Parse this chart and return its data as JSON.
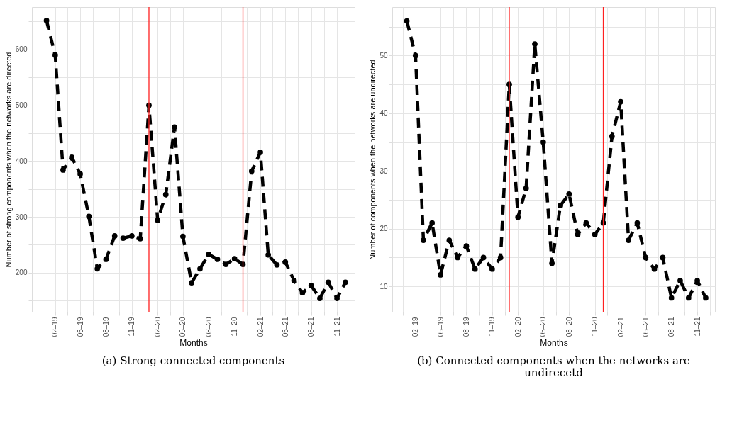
{
  "chart_data": [
    {
      "type": "line",
      "xlabel": "Months",
      "ylabel": "Number of strong components when the networks are directed",
      "annotations": [
        "(a) Strong connected components"
      ],
      "x": [
        "2019-01",
        "2019-02",
        "2019-03",
        "2019-04",
        "2019-05",
        "2019-06",
        "2019-07",
        "2019-08",
        "2019-09",
        "2019-10",
        "2019-11",
        "2019-12",
        "2020-01",
        "2020-02",
        "2020-03",
        "2020-04",
        "2020-05",
        "2020-06",
        "2020-07",
        "2020-08",
        "2020-09",
        "2020-10",
        "2020-11",
        "2020-12",
        "2021-01",
        "2021-02",
        "2021-03",
        "2021-04",
        "2021-05",
        "2021-06",
        "2021-07",
        "2021-08",
        "2021-09",
        "2021-10",
        "2021-11",
        "2021-12"
      ],
      "series": [
        {
          "color": "#000000",
          "values": [
            652,
            590,
            384,
            407,
            377,
            301,
            207,
            224,
            266,
            262,
            266,
            261,
            500,
            294,
            340,
            461,
            265,
            182,
            207,
            233,
            224,
            215,
            225,
            215,
            382,
            416,
            232,
            214,
            219,
            186,
            164,
            177,
            154,
            183,
            154,
            183
          ]
        }
      ],
      "marker": "circle",
      "line_style": "dashed",
      "grid": true,
      "xlim": [
        "2018-11-10",
        "2022-01-03"
      ],
      "xticks": [
        {
          "value": "2018-12-17",
          "label": null
        },
        {
          "value": "2019-02-01",
          "label": "02–19"
        },
        {
          "value": "2019-03-17",
          "label": null
        },
        {
          "value": "2019-05-01",
          "label": "05–19"
        },
        {
          "value": "2019-06-16",
          "label": null
        },
        {
          "value": "2019-08-01",
          "label": "08–19"
        },
        {
          "value": "2019-09-16",
          "label": null
        },
        {
          "value": "2019-11-01",
          "label": "11–19"
        },
        {
          "value": "2019-12-16",
          "label": null
        },
        {
          "value": "2020-02-01",
          "label": "02–20"
        },
        {
          "value": "2020-03-17",
          "label": null
        },
        {
          "value": "2020-05-01",
          "label": "05–20"
        },
        {
          "value": "2020-06-16",
          "label": null
        },
        {
          "value": "2020-08-01",
          "label": "08–20"
        },
        {
          "value": "2020-09-16",
          "label": null
        },
        {
          "value": "2020-11-01",
          "label": "11–20"
        },
        {
          "value": "2020-12-16",
          "label": null
        },
        {
          "value": "2021-02-01",
          "label": "02–21"
        },
        {
          "value": "2021-03-17",
          "label": null
        },
        {
          "value": "2021-05-01",
          "label": "05–21"
        },
        {
          "value": "2021-06-16",
          "label": null
        },
        {
          "value": "2021-08-01",
          "label": "08–21"
        },
        {
          "value": "2021-09-16",
          "label": null
        },
        {
          "value": "2021-11-01",
          "label": "11–21"
        },
        {
          "value": "2021-12-16",
          "label": null
        }
      ],
      "ylim": [
        130,
        676
      ],
      "yticks": [
        {
          "value": 150,
          "label": null
        },
        200,
        {
          "value": 250,
          "label": null
        },
        300,
        {
          "value": 350,
          "label": null
        },
        400,
        {
          "value": 450,
          "label": null
        },
        500,
        {
          "value": 550,
          "label": null
        },
        600,
        {
          "value": 650,
          "label": null
        }
      ],
      "ref_lines": [
        {
          "axis": "x",
          "value": "2020-01-01",
          "color": "#ff2020"
        },
        {
          "axis": "x",
          "value": "2020-12-01",
          "color": "#ff2020"
        }
      ]
    },
    {
      "type": "line",
      "xlabel": "Months",
      "ylabel": "Number of components when the networks are undirected",
      "annotations": [
        "(b) Connected components when the networks are undirecetd"
      ],
      "x": [
        "2019-01",
        "2019-02",
        "2019-03",
        "2019-04",
        "2019-05",
        "2019-06",
        "2019-07",
        "2019-08",
        "2019-09",
        "2019-10",
        "2019-11",
        "2019-12",
        "2020-01",
        "2020-02",
        "2020-03",
        "2020-04",
        "2020-05",
        "2020-06",
        "2020-07",
        "2020-08",
        "2020-09",
        "2020-10",
        "2020-11",
        "2020-12",
        "2021-01",
        "2021-02",
        "2021-03",
        "2021-04",
        "2021-05",
        "2021-06",
        "2021-07",
        "2021-08",
        "2021-09",
        "2021-10",
        "2021-11",
        "2021-12"
      ],
      "series": [
        {
          "color": "#000000",
          "values": [
            56,
            50,
            18,
            21,
            12,
            18,
            15,
            17,
            13,
            15,
            13,
            15,
            45,
            22,
            27,
            52,
            35,
            14,
            24,
            26,
            19,
            21,
            19,
            21,
            36,
            42,
            18,
            21,
            15,
            13,
            15,
            8,
            11,
            8,
            11,
            8
          ]
        }
      ],
      "marker": "circle",
      "line_style": "dashed",
      "grid": true,
      "xlim": [
        "2018-11-10",
        "2022-01-03"
      ],
      "xticks": [
        {
          "value": "2018-12-17",
          "label": null
        },
        {
          "value": "2019-02-01",
          "label": "02–19"
        },
        {
          "value": "2019-03-17",
          "label": null
        },
        {
          "value": "2019-05-01",
          "label": "05–19"
        },
        {
          "value": "2019-06-16",
          "label": null
        },
        {
          "value": "2019-08-01",
          "label": "08–19"
        },
        {
          "value": "2019-09-16",
          "label": null
        },
        {
          "value": "2019-11-01",
          "label": "11–19"
        },
        {
          "value": "2019-12-16",
          "label": null
        },
        {
          "value": "2020-02-01",
          "label": "02–20"
        },
        {
          "value": "2020-03-17",
          "label": null
        },
        {
          "value": "2020-05-01",
          "label": "05–20"
        },
        {
          "value": "2020-06-16",
          "label": null
        },
        {
          "value": "2020-08-01",
          "label": "08–20"
        },
        {
          "value": "2020-09-16",
          "label": null
        },
        {
          "value": "2020-11-01",
          "label": "11–20"
        },
        {
          "value": "2020-12-16",
          "label": null
        },
        {
          "value": "2021-02-01",
          "label": "02–21"
        },
        {
          "value": "2021-03-17",
          "label": null
        },
        {
          "value": "2021-05-01",
          "label": "05–21"
        },
        {
          "value": "2021-06-16",
          "label": null
        },
        {
          "value": "2021-08-01",
          "label": "08–21"
        },
        {
          "value": "2021-09-16",
          "label": null
        },
        {
          "value": "2021-11-01",
          "label": "11–21"
        },
        {
          "value": "2021-12-16",
          "label": null
        }
      ],
      "ylim": [
        5.6,
        58.4
      ],
      "yticks": [
        10,
        {
          "value": 15,
          "label": null
        },
        20,
        {
          "value": 25,
          "label": null
        },
        30,
        {
          "value": 35,
          "label": null
        },
        40,
        {
          "value": 45,
          "label": null
        },
        50,
        {
          "value": 55,
          "label": null
        }
      ],
      "ref_lines": [
        {
          "axis": "x",
          "value": "2020-01-01",
          "color": "#ff2020"
        },
        {
          "axis": "x",
          "value": "2020-12-01",
          "color": "#ff2020"
        }
      ]
    }
  ]
}
